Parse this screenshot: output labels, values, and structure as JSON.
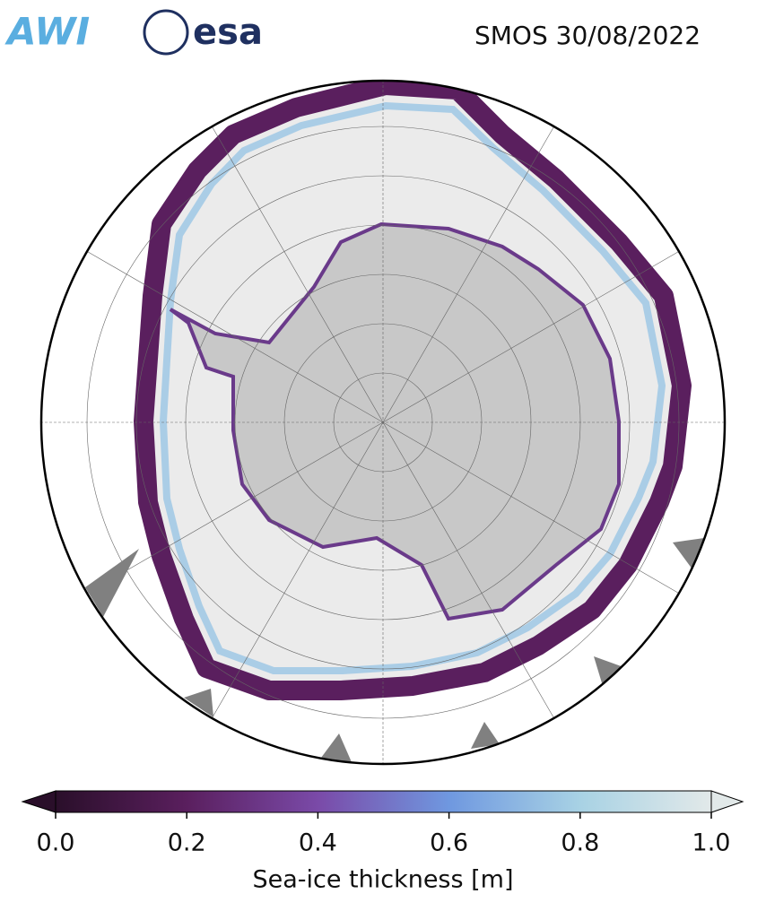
{
  "header": {
    "logos": [
      "AWI",
      "esa"
    ],
    "title": "SMOS 30/08/2022"
  },
  "colorbar": {
    "label": "Sea-ice thickness [m]",
    "lim": [
      0,
      1
    ],
    "ticks": [
      {
        "value": 0,
        "label": "0.0"
      },
      {
        "value": 0.2,
        "label": "0.2"
      },
      {
        "value": 0.4,
        "label": "0.4"
      },
      {
        "value": 0.6,
        "label": "0.6"
      },
      {
        "value": 0.8,
        "label": "0.8"
      },
      {
        "value": 1,
        "label": "1.0"
      }
    ],
    "colors": [
      "#2a0f2a",
      "#5a1f5e",
      "#7a4aa8",
      "#6f98e0",
      "#a8d2e4",
      "#e2e9e9"
    ]
  }
}
